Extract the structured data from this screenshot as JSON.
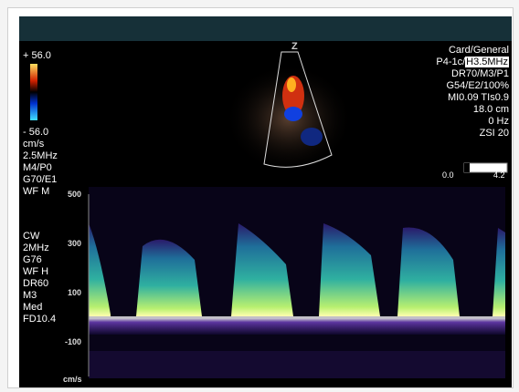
{
  "header": {
    "logo": "Z"
  },
  "left_panel": {
    "color_scale_top": "+ 56.0",
    "color_scale_bottom": "- 56.0",
    "color_lines": [
      "cm/s",
      "2.5MHz",
      "M4/P0",
      "G70/E1",
      "WF M"
    ],
    "doppler_lines": [
      "CW",
      "2MHz",
      "G76",
      "WF H",
      "DR60",
      "M3",
      "Med",
      "FD10.4"
    ]
  },
  "right_panel": {
    "preset": "Card/General",
    "probe": "P4-1c/",
    "frequency": "H3.5MHz",
    "lines": [
      "DR70/M3/P1",
      "G54/E2/100%",
      "MI0.09  TIs0.9",
      "18.0 cm",
      "0 Hz",
      "ZSI 20"
    ],
    "bar_min": "0.0",
    "bar_max": "4.2"
  },
  "doppler": {
    "axis_labels": [
      "500",
      "300",
      "100",
      "-100"
    ],
    "unit": "cm/s"
  }
}
